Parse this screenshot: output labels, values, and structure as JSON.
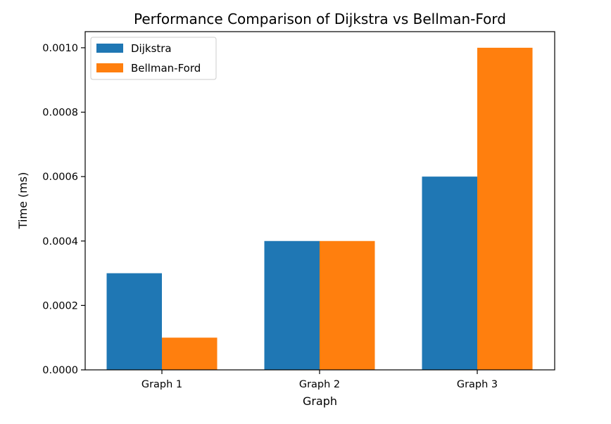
{
  "chart_data": {
    "type": "bar",
    "title": "Performance Comparison of Dijkstra vs Bellman-Ford",
    "xlabel": "Graph",
    "ylabel": "Time (ms)",
    "categories": [
      "Graph 1",
      "Graph 2",
      "Graph 3"
    ],
    "series": [
      {
        "name": "Dijkstra",
        "values": [
          0.0003,
          0.0004,
          0.0006
        ],
        "color": "#1f77b4"
      },
      {
        "name": "Bellman-Ford",
        "values": [
          0.0001,
          0.0004,
          0.001
        ],
        "color": "#ff7f0e"
      }
    ],
    "ylim": [
      0,
      0.00105
    ],
    "yticks": [
      0.0,
      0.0002,
      0.0004,
      0.0006,
      0.0008,
      0.001
    ],
    "ytick_labels": [
      "0.0000",
      "0.0002",
      "0.0004",
      "0.0006",
      "0.0008",
      "0.0010"
    ],
    "grid": false,
    "legend_position": "top-left"
  }
}
